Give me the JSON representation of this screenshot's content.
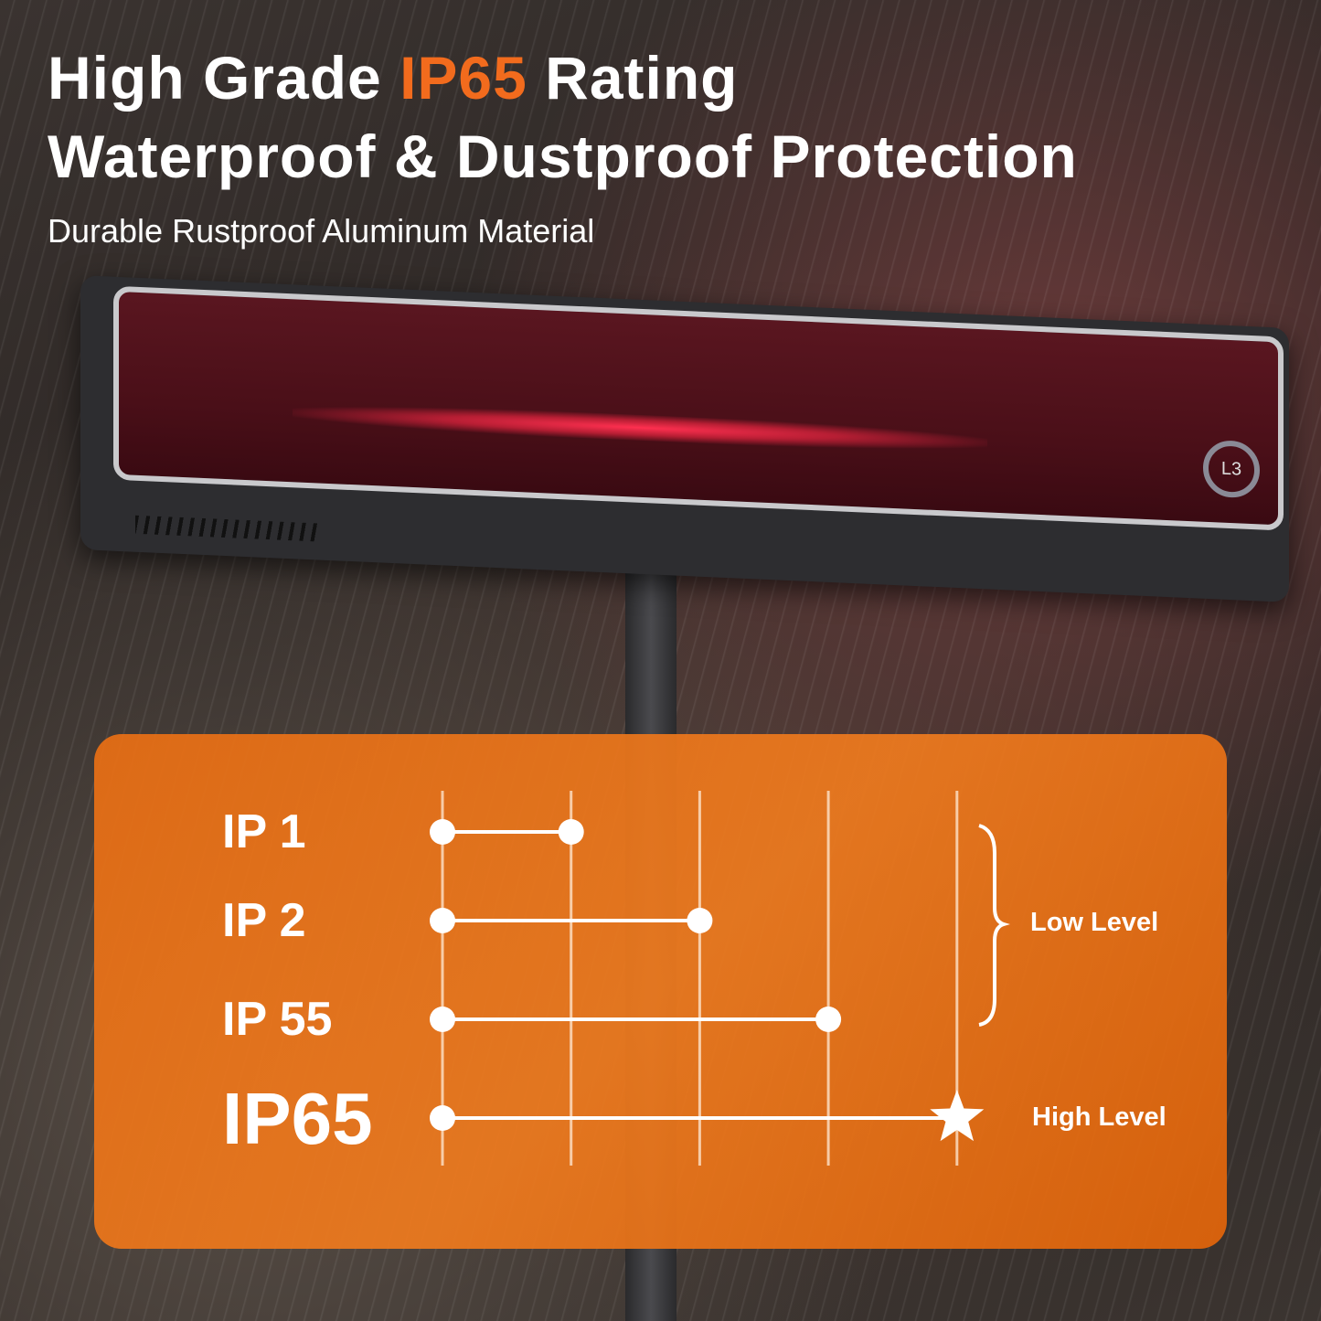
{
  "headline": {
    "line1_pre": "High Grade ",
    "line1_highlight": "IP65",
    "line1_post": " Rating",
    "line2": "Waterproof & Dustproof Protection"
  },
  "subtitle": "Durable Rustproof Aluminum Material",
  "heater": {
    "button_label": "L3"
  },
  "colors": {
    "accent": "#f26b1d",
    "panel": "#e9741a",
    "glow": "#ff3050"
  },
  "chart_data": {
    "type": "line",
    "title": "",
    "categories": [
      "IP 1",
      "IP 2",
      "IP 55",
      "IP65"
    ],
    "gridlines": 5,
    "values": [
      2,
      3,
      4,
      5
    ],
    "end_markers": [
      "dot",
      "dot",
      "dot",
      "star"
    ],
    "groups": [
      {
        "label": "Low Level",
        "members": [
          "IP 1",
          "IP 2",
          "IP 55"
        ]
      },
      {
        "label": "High Level",
        "members": [
          "IP65"
        ]
      }
    ]
  }
}
